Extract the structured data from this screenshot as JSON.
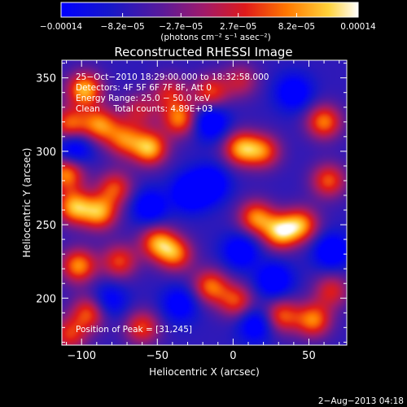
{
  "chart_data": {
    "type": "heatmap",
    "title": "Reconstructed RHESSI Image",
    "xlabel": "Heliocentric X (arcsec)",
    "ylabel": "Heliocentric Y (arcsec)",
    "xlim": [
      -113,
      75
    ],
    "ylim": [
      168,
      362
    ],
    "x_ticks": [
      -100,
      -50,
      0,
      50
    ],
    "y_ticks": [
      200,
      250,
      300,
      350
    ],
    "x_tick_labels": [
      "−100",
      "−50",
      "0",
      "50"
    ],
    "y_tick_labels": [
      "200",
      "250",
      "300",
      "350"
    ],
    "colorbar": {
      "range": [
        -0.00014,
        0.00014
      ],
      "ticks": [
        -0.00014,
        -8.2e-05,
        -2.7e-05,
        2.7e-05,
        8.2e-05,
        0.00014
      ],
      "tick_labels": [
        "−0.00014",
        "−8.2e−05",
        "−2.7e−05",
        "2.7e−05",
        "8.2e−05",
        "0.00014"
      ],
      "unit_label": "(photons cm⁻² s⁻¹ asec⁻²)",
      "colormap": "rainbow-blue-to-white"
    },
    "annotations": [
      "25−Oct−2010 18:29:00.000 to 18:32:58.000",
      "Detectors: 4F 5F 6F 7F 8F, Att 0",
      "Energy Range: 25.0 − 50.0 keV",
      "Clean     Total counts: 4.89E+03",
      "Position of Peak = [31,245]"
    ],
    "peak": {
      "x": 31,
      "y": 245
    },
    "hot_spots": [
      {
        "x": -98,
        "y": 342,
        "v": 1.0
      },
      {
        "x": -108,
        "y": 318,
        "v": 0.8
      },
      {
        "x": -88,
        "y": 318,
        "v": 0.85
      },
      {
        "x": -110,
        "y": 285,
        "v": 0.9
      },
      {
        "x": -105,
        "y": 262,
        "v": 0.95
      },
      {
        "x": -88,
        "y": 258,
        "v": 0.9
      },
      {
        "x": -78,
        "y": 275,
        "v": 0.7
      },
      {
        "x": -72,
        "y": 308,
        "v": 0.75
      },
      {
        "x": -55,
        "y": 302,
        "v": 1.0
      },
      {
        "x": -62,
        "y": 328,
        "v": 0.5
      },
      {
        "x": -42,
        "y": 340,
        "v": 0.55
      },
      {
        "x": -35,
        "y": 322,
        "v": 0.85
      },
      {
        "x": -15,
        "y": 340,
        "v": 0.7
      },
      {
        "x": 5,
        "y": 348,
        "v": 0.5
      },
      {
        "x": 5,
        "y": 302,
        "v": 0.9
      },
      {
        "x": 20,
        "y": 300,
        "v": 0.75
      },
      {
        "x": 60,
        "y": 320,
        "v": 0.85
      },
      {
        "x": 63,
        "y": 280,
        "v": 0.75
      },
      {
        "x": 15,
        "y": 255,
        "v": 0.85
      },
      {
        "x": 31,
        "y": 245,
        "v": 1.0
      },
      {
        "x": 45,
        "y": 250,
        "v": 0.85
      },
      {
        "x": -50,
        "y": 238,
        "v": 0.85
      },
      {
        "x": -38,
        "y": 230,
        "v": 0.8
      },
      {
        "x": -75,
        "y": 225,
        "v": 0.7
      },
      {
        "x": -102,
        "y": 222,
        "v": 0.9
      },
      {
        "x": -95,
        "y": 190,
        "v": 0.75
      },
      {
        "x": -108,
        "y": 175,
        "v": 0.65
      },
      {
        "x": -60,
        "y": 180,
        "v": 0.7
      },
      {
        "x": -15,
        "y": 208,
        "v": 0.8
      },
      {
        "x": 2,
        "y": 198,
        "v": 0.7
      },
      {
        "x": 32,
        "y": 188,
        "v": 0.75
      },
      {
        "x": 53,
        "y": 185,
        "v": 0.85
      },
      {
        "x": 65,
        "y": 205,
        "v": 0.6
      }
    ],
    "cold_spots": [
      {
        "x": -105,
        "y": 302,
        "v": -0.6
      },
      {
        "x": -15,
        "y": 320,
        "v": -0.65
      },
      {
        "x": -28,
        "y": 272,
        "v": -0.7
      },
      {
        "x": -15,
        "y": 278,
        "v": -0.6
      },
      {
        "x": -55,
        "y": 262,
        "v": -0.55
      },
      {
        "x": 5,
        "y": 232,
        "v": -0.55
      },
      {
        "x": 65,
        "y": 232,
        "v": -0.6
      },
      {
        "x": 27,
        "y": 212,
        "v": -0.6
      },
      {
        "x": -35,
        "y": 196,
        "v": -0.5
      },
      {
        "x": -82,
        "y": 198,
        "v": -0.45
      },
      {
        "x": 40,
        "y": 340,
        "v": -0.55
      },
      {
        "x": 15,
        "y": 182,
        "v": -0.55
      }
    ]
  },
  "footer": {
    "date_stamp": "2−Aug−2013 04:18"
  }
}
